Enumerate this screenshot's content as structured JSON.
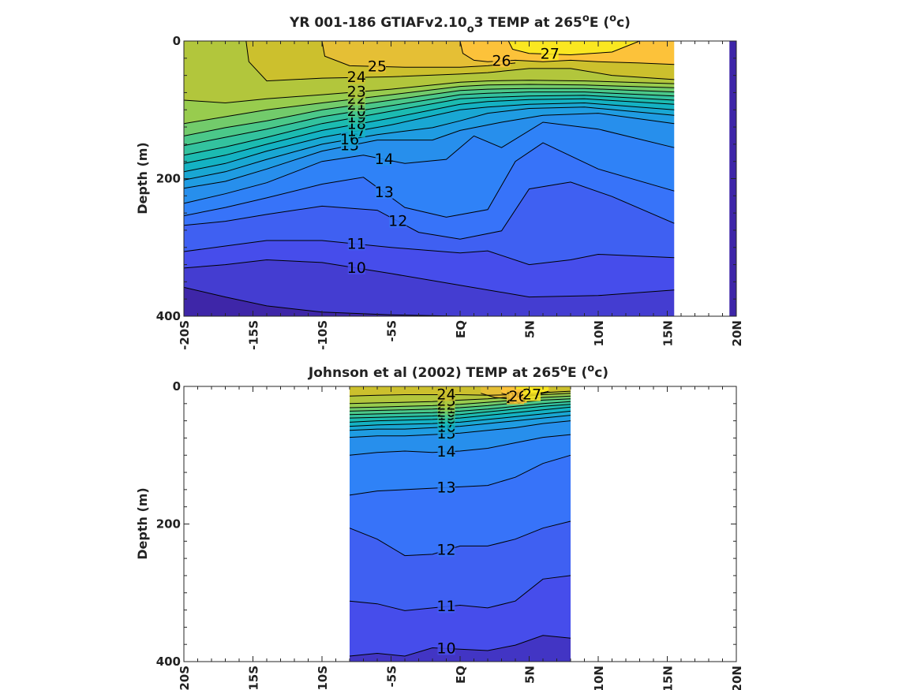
{
  "chart_data": [
    {
      "type": "heatmap",
      "subtype": "filled-contour",
      "title": "YR 001-186 GTIAFv2.10_o3 TEMP at 265°E (°c)",
      "title_parts": {
        "main": "YR 001-186 GTIAFv2.10",
        "sub": "o",
        "tail": "3 TEMP at 265",
        "deg": "o",
        "e_unit": "E (",
        "unit_o": "o",
        "unit_c": "c)"
      },
      "xlabel": "",
      "ylabel": "Depth (m)",
      "xlim": [
        -20,
        20
      ],
      "ylim": [
        400,
        0
      ],
      "y_reversed": true,
      "x_ticks": [
        -20,
        -15,
        -10,
        -5,
        0,
        5,
        10,
        15,
        20
      ],
      "x_tick_labels": [
        "-20S",
        "-15S",
        "-10S",
        "-5S",
        "EQ",
        "5N",
        "10N",
        "15N",
        "20N"
      ],
      "y_ticks": [
        0,
        200,
        400
      ],
      "y_tick_labels": [
        "0",
        "200",
        "400"
      ],
      "data_extent_x": [
        -20,
        20
      ],
      "data_gap_x": [
        15.5,
        19.5
      ],
      "colormap": "parula",
      "color_range": [
        8,
        28
      ],
      "contour_levels": [
        9,
        10,
        11,
        12,
        13,
        14,
        15,
        16,
        17,
        18,
        19,
        20,
        21,
        22,
        23,
        24,
        25,
        26,
        27
      ],
      "contours": [
        {
          "level": 9,
          "x": [
            -20,
            -17,
            -14,
            -10,
            -5,
            0,
            5,
            10,
            15.5
          ],
          "depth": [
            358,
            372,
            385,
            394,
            398,
            400,
            400,
            400,
            400
          ]
        },
        {
          "level": 10,
          "x": [
            -20,
            -17,
            -14,
            -10,
            -5,
            0,
            5,
            10,
            15.5
          ],
          "depth": [
            330,
            325,
            318,
            322,
            338,
            355,
            372,
            370,
            362
          ]
        },
        {
          "level": 11,
          "x": [
            -20,
            -17,
            -14,
            -10,
            -5,
            0,
            2,
            5,
            8,
            10,
            15.5
          ],
          "depth": [
            306,
            298,
            290,
            290,
            300,
            308,
            305,
            325,
            318,
            310,
            315
          ]
        },
        {
          "level": 12,
          "x": [
            -20,
            -17,
            -14,
            -10,
            -6,
            -3,
            0,
            3,
            5,
            8,
            11,
            15.5
          ],
          "depth": [
            268,
            262,
            252,
            240,
            246,
            278,
            288,
            276,
            215,
            205,
            226,
            265
          ]
        },
        {
          "level": 13,
          "x": [
            -20,
            -17,
            -14,
            -10,
            -7,
            -4,
            -1,
            2,
            4,
            6,
            10,
            15.5
          ],
          "depth": [
            254,
            242,
            228,
            208,
            198,
            242,
            256,
            245,
            175,
            148,
            186,
            218
          ]
        },
        {
          "level": 14,
          "x": [
            -20,
            -17,
            -14,
            -10,
            -7,
            -4,
            -1,
            1,
            3,
            6,
            10,
            15.5
          ],
          "depth": [
            236,
            222,
            206,
            175,
            166,
            178,
            172,
            138,
            155,
            118,
            128,
            155
          ]
        },
        {
          "level": 15,
          "x": [
            -20,
            -17,
            -14,
            -10,
            -6,
            -2,
            0,
            3,
            6,
            10,
            15.5
          ],
          "depth": [
            214,
            204,
            186,
            160,
            144,
            144,
            130,
            118,
            108,
            105,
            120
          ]
        },
        {
          "level": 16,
          "x": [
            -20,
            -17,
            -14,
            -10,
            -6,
            -2,
            0,
            2,
            5,
            9,
            15.5
          ],
          "depth": [
            202,
            190,
            172,
            150,
            136,
            126,
            116,
            105,
            98,
            96,
            108
          ]
        },
        {
          "level": 17,
          "x": [
            -20,
            -17,
            -14,
            -10,
            -5,
            0,
            2,
            5,
            9,
            15.5
          ],
          "depth": [
            190,
            178,
            160,
            140,
            122,
            100,
            96,
            92,
            90,
            100
          ]
        },
        {
          "level": 18,
          "x": [
            -20,
            -17,
            -14,
            -10,
            -5,
            0,
            2,
            5,
            9,
            15.5
          ],
          "depth": [
            178,
            166,
            150,
            130,
            112,
            92,
            88,
            85,
            84,
            92
          ]
        },
        {
          "level": 19,
          "x": [
            -20,
            -17,
            -14,
            -10,
            -5,
            0,
            2,
            5,
            9,
            15.5
          ],
          "depth": [
            166,
            154,
            140,
            120,
            102,
            84,
            82,
            80,
            79,
            86
          ]
        },
        {
          "level": 20,
          "x": [
            -20,
            -17,
            -14,
            -10,
            -5,
            0,
            2,
            5,
            9,
            15.5
          ],
          "depth": [
            152,
            140,
            128,
            110,
            94,
            78,
            76,
            74,
            74,
            80
          ]
        },
        {
          "level": 21,
          "x": [
            -20,
            -17,
            -14,
            -10,
            -5,
            0,
            2,
            5,
            9,
            15.5
          ],
          "depth": [
            138,
            126,
            116,
            100,
            86,
            72,
            70,
            69,
            69,
            74
          ]
        },
        {
          "level": 22,
          "x": [
            -20,
            -17,
            -14,
            -10,
            -5,
            0,
            2,
            5,
            9,
            15.5
          ],
          "depth": [
            120,
            110,
            100,
            90,
            78,
            66,
            64,
            63,
            64,
            68
          ]
        },
        {
          "level": 23,
          "x": [
            -20,
            -17,
            -14,
            -10,
            -5,
            0,
            2,
            5,
            9,
            15.5
          ],
          "depth": [
            86,
            90,
            84,
            78,
            70,
            60,
            58,
            57,
            58,
            62
          ]
        },
        {
          "level": 24,
          "x": [
            -15.5,
            -15.3,
            -14,
            -10,
            -5,
            0,
            2,
            5,
            8,
            11,
            15.5
          ],
          "depth": [
            0,
            30,
            58,
            54,
            52,
            48,
            46,
            40,
            40,
            50,
            56
          ]
        },
        {
          "level": 25,
          "x": [
            -10,
            -9.8,
            -8,
            -4,
            0,
            2,
            4
          ],
          "depth": [
            0,
            22,
            36,
            38,
            38,
            36,
            32
          ]
        },
        {
          "level": 26,
          "x": [
            0,
            0.2,
            1,
            2,
            4,
            6,
            8,
            10,
            13,
            15.5
          ],
          "depth": [
            0,
            18,
            28,
            30,
            28,
            30,
            28,
            30,
            32,
            34
          ]
        },
        {
          "level": 27,
          "x": [
            3.5,
            3.8,
            5,
            8,
            11,
            13
          ],
          "depth": [
            0,
            12,
            18,
            20,
            16,
            0
          ]
        }
      ],
      "labeled_levels": [
        9,
        10,
        11,
        12,
        13,
        14,
        15,
        16,
        17,
        18,
        19,
        20,
        21,
        22,
        23,
        24,
        25,
        26,
        27
      ]
    },
    {
      "type": "heatmap",
      "subtype": "filled-contour",
      "title": "Johnson et al (2002) TEMP at 265°E (°c)",
      "title_parts": {
        "main": "Johnson et al (2002) TEMP at 265",
        "deg": "o",
        "e_unit": "E (",
        "unit_o": "o",
        "unit_c": "c)"
      },
      "xlabel": "",
      "ylabel": "Depth (m)",
      "xlim": [
        -20,
        20
      ],
      "ylim": [
        400,
        0
      ],
      "y_reversed": true,
      "x_ticks": [
        -20,
        -15,
        -10,
        -5,
        0,
        5,
        10,
        15,
        20
      ],
      "x_tick_labels": [
        "-20S",
        "-15S",
        "-10S",
        "-5S",
        "EQ",
        "5N",
        "10N",
        "15N",
        "20N"
      ],
      "y_ticks": [
        0,
        200,
        400
      ],
      "y_tick_labels": [
        "0",
        "200",
        "400"
      ],
      "data_extent_x": [
        -8,
        8
      ],
      "colormap": "parula",
      "color_range": [
        8,
        28
      ],
      "contour_levels": [
        10,
        11,
        12,
        13,
        14,
        15,
        16,
        17,
        18,
        19,
        20,
        21,
        22,
        23,
        24,
        25,
        26,
        27
      ],
      "contours": [
        {
          "level": 10,
          "x": [
            -8,
            -6,
            -4,
            -2,
            0,
            2,
            4,
            6,
            8
          ],
          "depth": [
            392,
            388,
            392,
            380,
            382,
            384,
            376,
            362,
            366
          ]
        },
        {
          "level": 11,
          "x": [
            -8,
            -6,
            -4,
            -2,
            0,
            2,
            4,
            6,
            8
          ],
          "depth": [
            312,
            316,
            326,
            322,
            318,
            322,
            312,
            280,
            275
          ]
        },
        {
          "level": 12,
          "x": [
            -8,
            -6,
            -4,
            -2,
            0,
            2,
            4,
            6,
            8
          ],
          "depth": [
            206,
            222,
            246,
            244,
            232,
            232,
            222,
            206,
            196
          ]
        },
        {
          "level": 13,
          "x": [
            -8,
            -6,
            -4,
            -2,
            0,
            2,
            4,
            6,
            8
          ],
          "depth": [
            158,
            152,
            150,
            148,
            146,
            144,
            132,
            112,
            100
          ]
        },
        {
          "level": 14,
          "x": [
            -8,
            -6,
            -4,
            -2,
            0,
            2,
            4,
            6,
            8
          ],
          "depth": [
            100,
            96,
            94,
            96,
            94,
            90,
            82,
            74,
            70
          ]
        },
        {
          "level": 15,
          "x": [
            -8,
            -6,
            -4,
            -2,
            0,
            2,
            4,
            6,
            8
          ],
          "depth": [
            74,
            72,
            72,
            70,
            68,
            64,
            60,
            54,
            50
          ]
        },
        {
          "level": 16,
          "x": [
            -8,
            -6,
            -4,
            -2,
            0,
            2,
            4,
            6,
            8
          ],
          "depth": [
            64,
            62,
            62,
            60,
            58,
            54,
            50,
            46,
            42
          ]
        },
        {
          "level": 17,
          "x": [
            -8,
            -6,
            -4,
            -2,
            0,
            2,
            4,
            6,
            8
          ],
          "depth": [
            58,
            56,
            55,
            54,
            52,
            48,
            44,
            40,
            36
          ]
        },
        {
          "level": 18,
          "x": [
            -8,
            -6,
            -4,
            -2,
            0,
            2,
            4,
            6,
            8
          ],
          "depth": [
            52,
            50,
            49,
            48,
            46,
            42,
            38,
            34,
            30
          ]
        },
        {
          "level": 19,
          "x": [
            -8,
            -6,
            -4,
            -2,
            0,
            2,
            4,
            6,
            8
          ],
          "depth": [
            46,
            45,
            44,
            43,
            41,
            37,
            33,
            29,
            26
          ]
        },
        {
          "level": 20,
          "x": [
            -8,
            -6,
            -4,
            -2,
            0,
            2,
            4,
            6,
            8
          ],
          "depth": [
            41,
            40,
            39,
            38,
            36,
            33,
            29,
            25,
            22
          ]
        },
        {
          "level": 21,
          "x": [
            -8,
            -6,
            -4,
            -2,
            0,
            2,
            4,
            6,
            8
          ],
          "depth": [
            36,
            35,
            34,
            33,
            31,
            28,
            24,
            20,
            18
          ]
        },
        {
          "level": 22,
          "x": [
            -8,
            -6,
            -4,
            -2,
            0,
            2,
            4,
            6,
            8
          ],
          "depth": [
            31,
            30,
            29,
            28,
            26,
            23,
            20,
            16,
            14
          ]
        },
        {
          "level": 23,
          "x": [
            -8,
            -6,
            -4,
            -2,
            0,
            2,
            4,
            6,
            8
          ],
          "depth": [
            25,
            24,
            23,
            22,
            20,
            18,
            15,
            12,
            10
          ]
        },
        {
          "level": 24,
          "x": [
            -8,
            -6,
            -4,
            -2,
            0,
            2,
            4,
            6,
            8
          ],
          "depth": [
            14,
            13,
            12,
            12,
            12,
            13,
            12,
            9,
            7
          ]
        },
        {
          "level": 25,
          "x": [
            1.5,
            2.5,
            3.5,
            4.5,
            5.5,
            6.5
          ],
          "depth": [
            10,
            16,
            18,
            16,
            12,
            8
          ]
        },
        {
          "level": 26,
          "x": [
            3,
            3.8,
            4.6,
            5.4,
            6.2
          ],
          "depth": [
            10,
            14,
            16,
            13,
            8
          ]
        },
        {
          "level": 27,
          "x": [
            4,
            4.8,
            5.6,
            6.4
          ],
          "depth": [
            8,
            12,
            12,
            7
          ]
        }
      ],
      "labeled_levels": [
        10,
        11,
        12,
        13,
        14,
        15,
        16,
        17,
        18,
        19,
        20,
        21,
        22,
        23,
        24,
        25,
        26,
        27
      ]
    }
  ]
}
